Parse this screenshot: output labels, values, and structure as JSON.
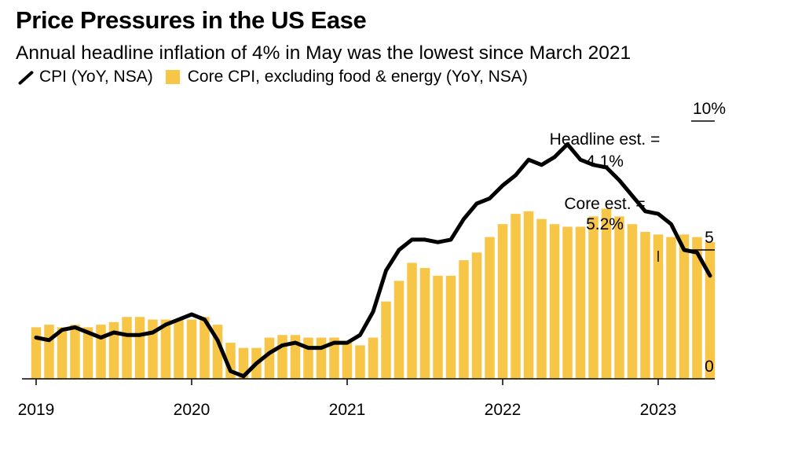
{
  "title": "Price Pressures in the US Ease",
  "subtitle": "Annual headline inflation of 4% in May was the lowest since March 2021",
  "legend": {
    "line_label": "CPI (YoY, NSA)",
    "bar_label": "Core CPI, excluding food & energy (YoY, NSA)"
  },
  "colors": {
    "line": "#000000",
    "bar": "#F7C646",
    "axis": "#000000"
  },
  "chart_data": {
    "type": "bar+line",
    "x_start": "2019-01",
    "x_ticks": [
      "2019",
      "2020",
      "2021",
      "2022",
      "2023"
    ],
    "y_ticks": [
      "0",
      "5",
      "10%"
    ],
    "ylim": [
      0,
      10
    ],
    "series": [
      {
        "name": "CPI (YoY, NSA)",
        "kind": "line",
        "values": [
          1.6,
          1.5,
          1.9,
          2.0,
          1.8,
          1.6,
          1.8,
          1.7,
          1.7,
          1.8,
          2.1,
          2.3,
          2.5,
          2.3,
          1.5,
          0.3,
          0.1,
          0.6,
          1.0,
          1.3,
          1.4,
          1.2,
          1.2,
          1.4,
          1.4,
          1.7,
          2.6,
          4.2,
          5.0,
          5.4,
          5.4,
          5.3,
          5.4,
          6.2,
          6.8,
          7.0,
          7.5,
          7.9,
          8.5,
          8.3,
          8.6,
          9.1,
          8.5,
          8.3,
          8.2,
          7.7,
          7.1,
          6.5,
          6.4,
          6.0,
          5.0,
          4.9,
          4.0
        ]
      },
      {
        "name": "Core CPI, excluding food & energy (YoY, NSA)",
        "kind": "bar",
        "values": [
          2.0,
          2.1,
          2.0,
          2.1,
          2.0,
          2.1,
          2.2,
          2.4,
          2.4,
          2.3,
          2.3,
          2.3,
          2.3,
          2.4,
          2.1,
          1.4,
          1.2,
          1.2,
          1.6,
          1.7,
          1.7,
          1.6,
          1.6,
          1.6,
          1.4,
          1.3,
          1.6,
          3.0,
          3.8,
          4.5,
          4.3,
          4.0,
          4.0,
          4.6,
          4.9,
          5.5,
          6.0,
          6.4,
          6.5,
          6.2,
          6.0,
          5.9,
          5.9,
          6.3,
          6.6,
          6.3,
          6.0,
          5.7,
          5.6,
          5.5,
          5.6,
          5.5,
          5.3
        ]
      }
    ],
    "annotations": [
      {
        "label_line1": "Headline est. =",
        "label_line2": "4.1%"
      },
      {
        "label_line1": "Core est. =",
        "label_line2": "5.2%"
      }
    ]
  }
}
